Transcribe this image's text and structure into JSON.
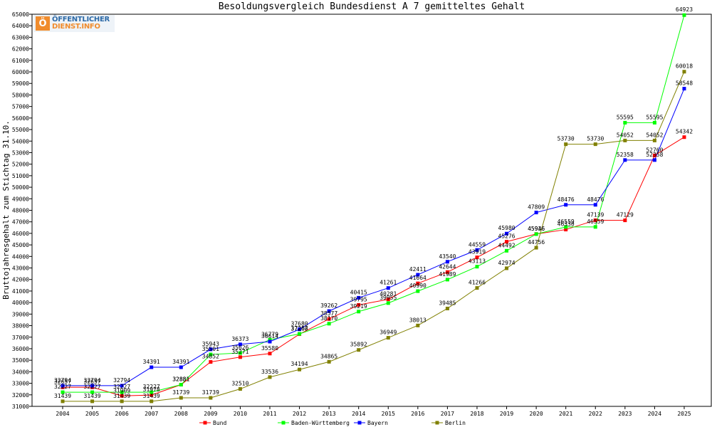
{
  "brand": {
    "logo_line1": "ÖFFENTLICHER",
    "logo_line2": "DIENST.INFO",
    "logo_mark": "Ö"
  },
  "chart_data": {
    "type": "line",
    "title": "Besoldungsvergleich Bundesdienst A 7 gemitteltes Gehalt",
    "xlabel": "",
    "ylabel": "Bruttojahresgehalt zum Stichtag 31.10.",
    "ylim": [
      31000,
      65000
    ],
    "ytick_step": 1000,
    "grid": false,
    "legend_position": "bottom",
    "x": [
      "2004",
      "2005",
      "2006",
      "2007",
      "2008",
      "2009",
      "2010",
      "2011",
      "2012",
      "2013",
      "2014",
      "2015",
      "2016",
      "2017",
      "2018",
      "2019",
      "2020",
      "2021",
      "2022",
      "2023",
      "2024",
      "2025"
    ],
    "series": [
      {
        "name": "Bund",
        "color": "#ff0000",
        "values": [
          32657,
          32657,
          31909,
          31978,
          32881,
          34852,
          35271,
          35580,
          37260,
          38577,
          39795,
          40281,
          41664,
          42644,
          43919,
          45276,
          45946,
          46330,
          47139,
          47129,
          52760,
          54342
        ]
      },
      {
        "name": "Baden-Württemberg",
        "color": "#00ff00",
        "values": [
          32227,
          32227,
          32227,
          32227,
          32881,
          35501,
          35626,
          36779,
          37287,
          38170,
          39219,
          39955,
          40990,
          41989,
          43113,
          44492,
          45936,
          46559,
          46559,
          55595,
          55595,
          64923
        ]
      },
      {
        "name": "Bayern",
        "color": "#0000ff",
        "values": [
          32794,
          32794,
          32794,
          34391,
          34391,
          35943,
          36373,
          36614,
          37680,
          39262,
          40415,
          41261,
          42411,
          43540,
          44559,
          45980,
          47809,
          48476,
          48476,
          52358,
          52358,
          58548
        ]
      },
      {
        "name": "Berlin",
        "color": "#808000",
        "values": [
          31439,
          31439,
          31439,
          31439,
          31739,
          31739,
          32510,
          33536,
          34194,
          34865,
          35892,
          36949,
          38013,
          39485,
          41266,
          42974,
          44756,
          53730,
          53730,
          54052,
          54052,
          60018
        ]
      }
    ]
  }
}
